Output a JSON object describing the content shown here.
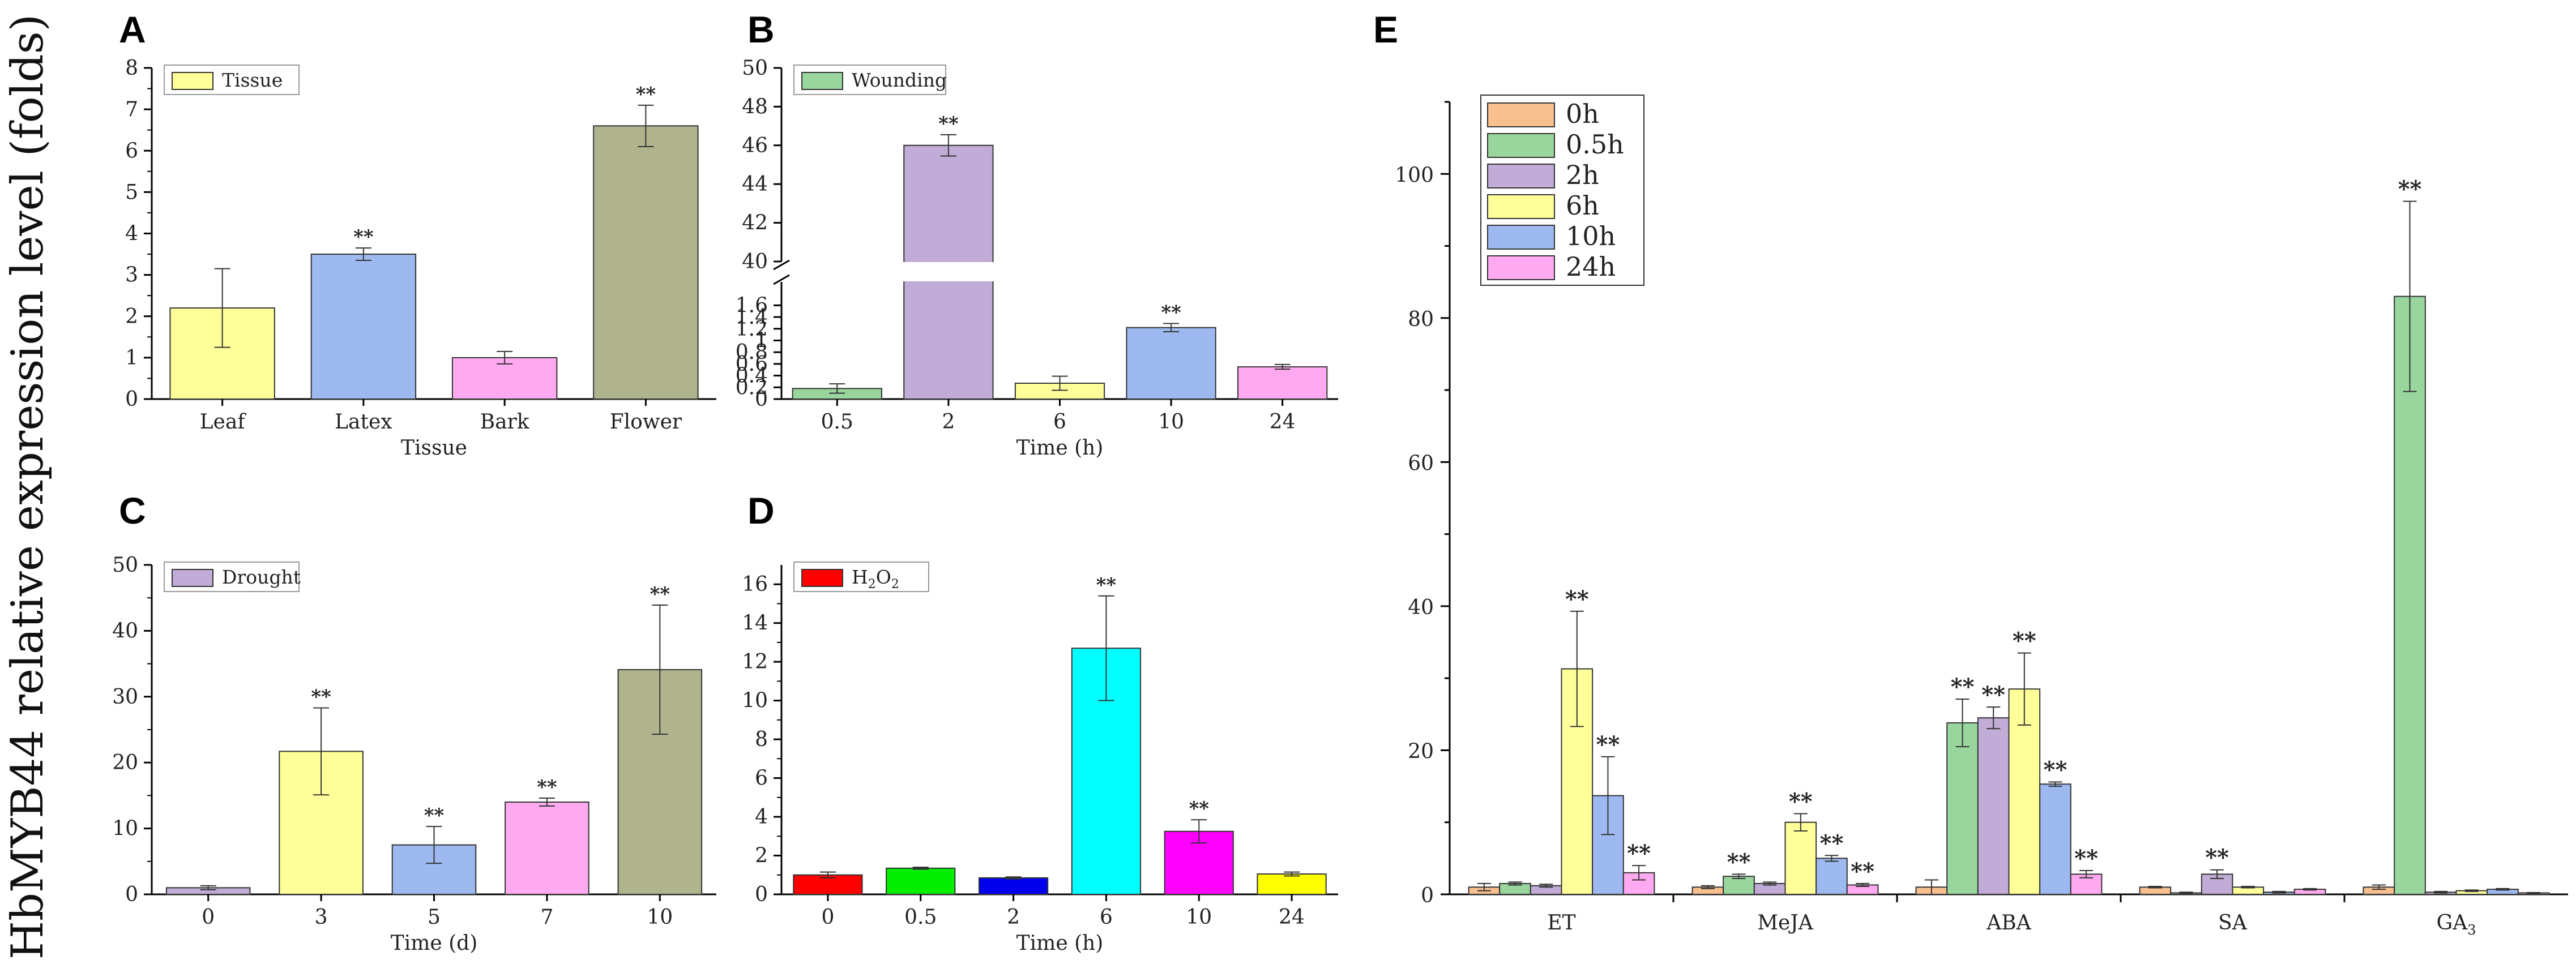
{
  "y_axis_title": "HbMYB44 relative expression level (folds)",
  "chart_data": [
    {
      "id": "A",
      "type": "bar",
      "panel_label": "A",
      "legend": "Tissue",
      "legend_color": "#ffff99",
      "categories": [
        "Leaf",
        "Latex",
        "Bark",
        "Flower"
      ],
      "values": [
        2.2,
        3.5,
        1.0,
        6.6
      ],
      "errors": [
        0.95,
        0.15,
        0.15,
        0.5
      ],
      "colors": [
        "#ffff99",
        "#9db9f0",
        "#ffaaf0",
        "#b0b48c"
      ],
      "significance": [
        "",
        "**",
        "",
        "**"
      ],
      "xlabel": "Tissue",
      "ylim": [
        0,
        8
      ],
      "yticks": [
        0,
        1,
        2,
        3,
        4,
        5,
        6,
        7,
        8
      ]
    },
    {
      "id": "B",
      "type": "bar",
      "panel_label": "B",
      "broken_axis": true,
      "legend": "Wounding",
      "legend_color": "#99d69e",
      "categories": [
        "0.5",
        "2",
        "6",
        "10",
        "24"
      ],
      "values": [
        0.18,
        46.0,
        0.27,
        1.22,
        0.55
      ],
      "errors": [
        0.08,
        0.55,
        0.12,
        0.07,
        0.04
      ],
      "colors": [
        "#99d69e",
        "#c0acd6",
        "#ffff99",
        "#9db9f0",
        "#ffaaf0"
      ],
      "significance": [
        "",
        "**",
        "",
        "**",
        ""
      ],
      "xlabel": "Time (h)",
      "lower_ylim": [
        0,
        2.0
      ],
      "upper_ylim": [
        40,
        50
      ],
      "yticks": [
        0,
        0.2,
        0.4,
        0.6,
        0.8,
        1.0,
        1.2,
        1.4,
        1.6,
        40,
        42,
        44,
        46,
        48,
        50
      ]
    },
    {
      "id": "C",
      "type": "bar",
      "panel_label": "C",
      "legend": "Drought",
      "legend_color": "#c0acd6",
      "categories": [
        "0",
        "3",
        "5",
        "7",
        "10"
      ],
      "values": [
        1.0,
        21.7,
        7.5,
        14.0,
        34.1
      ],
      "errors": [
        0.3,
        6.6,
        2.8,
        0.6,
        9.8
      ],
      "colors": [
        "#c0acd6",
        "#ffff99",
        "#9db9f0",
        "#ffaaf0",
        "#b0b48c"
      ],
      "significance": [
        "",
        "**",
        "**",
        "**",
        "**"
      ],
      "xlabel": "Time (d)",
      "ylim": [
        0,
        50
      ],
      "yticks": [
        0,
        10,
        20,
        30,
        40,
        50
      ]
    },
    {
      "id": "D",
      "type": "bar",
      "panel_label": "D",
      "legend": "H2O2",
      "legend_color": "#ff0000",
      "categories": [
        "0",
        "0.5",
        "2",
        "6",
        "10",
        "24"
      ],
      "values": [
        1.0,
        1.35,
        0.85,
        12.7,
        3.25,
        1.05
      ],
      "errors": [
        0.15,
        0.05,
        0.05,
        2.7,
        0.6,
        0.1
      ],
      "colors": [
        "#ff0000",
        "#00ee00",
        "#0000ee",
        "#00ffff",
        "#ff00ff",
        "#ffff00"
      ],
      "significance": [
        "",
        "",
        "",
        "**",
        "**",
        ""
      ],
      "xlabel": "Time (h)",
      "ylim": [
        0,
        17
      ],
      "yticks": [
        0,
        2,
        4,
        6,
        8,
        10,
        12,
        14,
        16
      ]
    },
    {
      "id": "E",
      "type": "bar",
      "panel_label": "E",
      "categories": [
        "ET",
        "MeJA",
        "ABA",
        "SA",
        "GA3"
      ],
      "series": [
        {
          "name": "0h",
          "color": "#f9c08f",
          "values": [
            1.0,
            1.0,
            1.0,
            1.0,
            1.0
          ],
          "errors": [
            0.5,
            0.2,
            1.0,
            0.1,
            0.3
          ],
          "significance": [
            "",
            "",
            "",
            "",
            ""
          ]
        },
        {
          "name": "0.5h",
          "color": "#99d69e",
          "values": [
            1.5,
            2.5,
            23.8,
            0.2,
            83.0
          ],
          "errors": [
            0.2,
            0.3,
            3.3,
            0.1,
            13.2
          ],
          "significance": [
            "",
            "**",
            "**",
            "",
            "**"
          ]
        },
        {
          "name": "2h",
          "color": "#c0acd6",
          "values": [
            1.2,
            1.5,
            24.5,
            2.8,
            0.3
          ],
          "errors": [
            0.2,
            0.2,
            1.5,
            0.6,
            0.1
          ],
          "significance": [
            "",
            "",
            "**",
            "**",
            ""
          ]
        },
        {
          "name": "6h",
          "color": "#ffff99",
          "values": [
            31.3,
            10.0,
            28.5,
            1.0,
            0.5
          ],
          "errors": [
            8.0,
            1.2,
            5.0,
            0.1,
            0.1
          ],
          "significance": [
            "**",
            "**",
            "**",
            "",
            ""
          ]
        },
        {
          "name": "10h",
          "color": "#9db9f0",
          "values": [
            13.7,
            5.0,
            15.3,
            0.3,
            0.7
          ],
          "errors": [
            5.4,
            0.4,
            0.3,
            0.1,
            0.1
          ],
          "significance": [
            "**",
            "**",
            "**",
            "",
            ""
          ]
        },
        {
          "name": "24h",
          "color": "#ffaaf0",
          "values": [
            3.0,
            1.3,
            2.8,
            0.7,
            0.2
          ],
          "errors": [
            1.0,
            0.2,
            0.5,
            0.1,
            0.05
          ],
          "significance": [
            "**",
            "**",
            "**",
            "",
            ""
          ]
        }
      ],
      "ylim": [
        0,
        110
      ],
      "yticks": [
        0,
        20,
        40,
        60,
        80,
        100
      ]
    }
  ]
}
